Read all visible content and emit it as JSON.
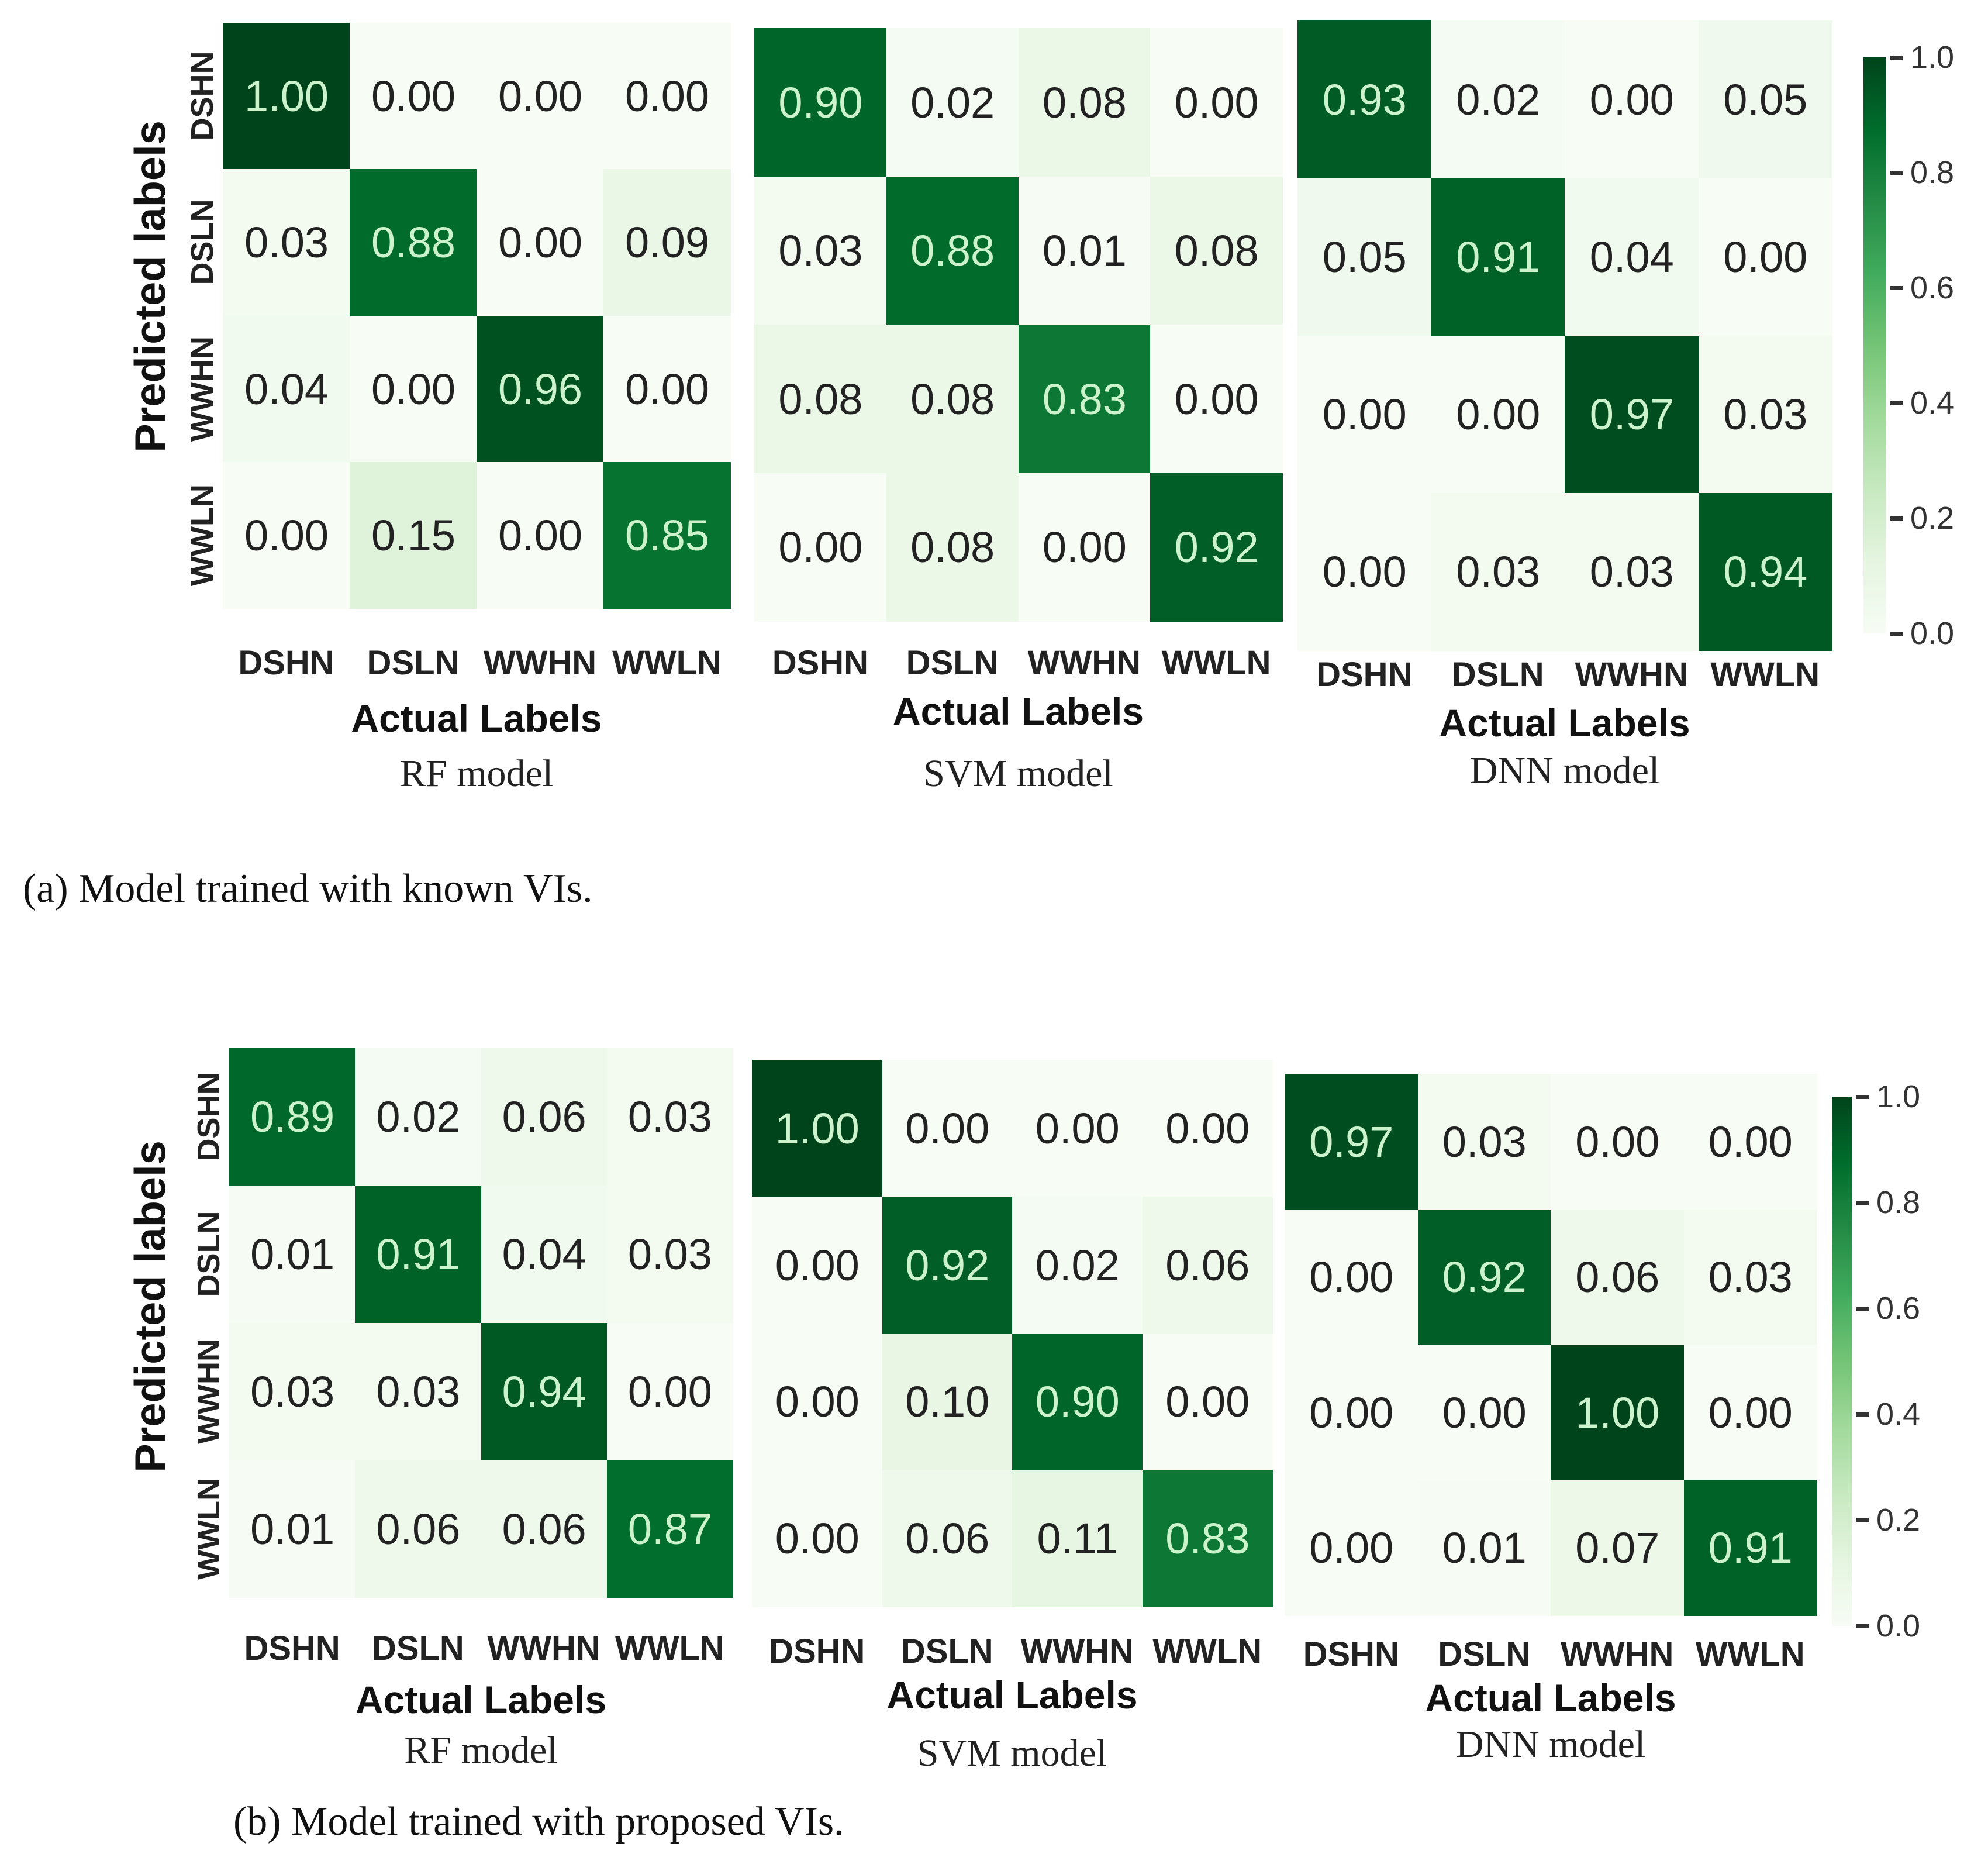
{
  "chart_data": [
    {
      "type": "heatmap",
      "panel": "a",
      "title": "RF model",
      "xlabel": "Actual Labels",
      "ylabel": "Predicted labels",
      "categories": [
        "DSHN",
        "DSLN",
        "WWHN",
        "WWLN"
      ],
      "values": [
        [
          1.0,
          0.0,
          0.0,
          0.0
        ],
        [
          0.03,
          0.88,
          0.0,
          0.09
        ],
        [
          0.04,
          0.0,
          0.96,
          0.0
        ],
        [
          0.0,
          0.15,
          0.0,
          0.85
        ]
      ]
    },
    {
      "type": "heatmap",
      "panel": "a",
      "title": "SVM model",
      "xlabel": "Actual Labels",
      "categories": [
        "DSHN",
        "DSLN",
        "WWHN",
        "WWLN"
      ],
      "values": [
        [
          0.9,
          0.02,
          0.08,
          0.0
        ],
        [
          0.03,
          0.88,
          0.01,
          0.08
        ],
        [
          0.08,
          0.08,
          0.83,
          0.0
        ],
        [
          0.0,
          0.08,
          0.0,
          0.92
        ]
      ]
    },
    {
      "type": "heatmap",
      "panel": "a",
      "title": "DNN model",
      "xlabel": "Actual Labels",
      "categories": [
        "DSHN",
        "DSLN",
        "WWHN",
        "WWLN"
      ],
      "values": [
        [
          0.93,
          0.02,
          0.0,
          0.05
        ],
        [
          0.05,
          0.91,
          0.04,
          0.0
        ],
        [
          0.0,
          0.0,
          0.97,
          0.03
        ],
        [
          0.0,
          0.03,
          0.03,
          0.94
        ]
      ]
    },
    {
      "type": "heatmap",
      "panel": "b",
      "title": "RF model",
      "xlabel": "Actual Labels",
      "ylabel": "Predicted labels",
      "categories": [
        "DSHN",
        "DSLN",
        "WWHN",
        "WWLN"
      ],
      "values": [
        [
          0.89,
          0.02,
          0.06,
          0.03
        ],
        [
          0.01,
          0.91,
          0.04,
          0.03
        ],
        [
          0.03,
          0.03,
          0.94,
          0.0
        ],
        [
          0.01,
          0.06,
          0.06,
          0.87
        ]
      ]
    },
    {
      "type": "heatmap",
      "panel": "b",
      "title": "SVM model",
      "xlabel": "Actual Labels",
      "categories": [
        "DSHN",
        "DSLN",
        "WWHN",
        "WWLN"
      ],
      "values": [
        [
          1.0,
          0.0,
          0.0,
          0.0
        ],
        [
          0.0,
          0.92,
          0.02,
          0.06
        ],
        [
          0.0,
          0.1,
          0.9,
          0.0
        ],
        [
          0.0,
          0.06,
          0.11,
          0.83
        ]
      ]
    },
    {
      "type": "heatmap",
      "panel": "b",
      "title": "DNN model",
      "xlabel": "Actual Labels",
      "categories": [
        "DSHN",
        "DSLN",
        "WWHN",
        "WWLN"
      ],
      "values": [
        [
          0.97,
          0.03,
          0.0,
          0.0
        ],
        [
          0.0,
          0.92,
          0.06,
          0.03
        ],
        [
          0.0,
          0.0,
          1.0,
          0.0
        ],
        [
          0.0,
          0.01,
          0.07,
          0.91
        ]
      ]
    }
  ],
  "colorbar": {
    "range": [
      0.0,
      1.0
    ],
    "ticks": [
      "0.0",
      "0.2",
      "0.4",
      "0.6",
      "0.8",
      "1.0"
    ],
    "colormap": "Greens",
    "low_color": "#f7fcf5",
    "high_color": "#00441b"
  },
  "captions": {
    "a": "(a)   Model trained with known VIs.",
    "b": "(b) Model trained with proposed VIs."
  }
}
